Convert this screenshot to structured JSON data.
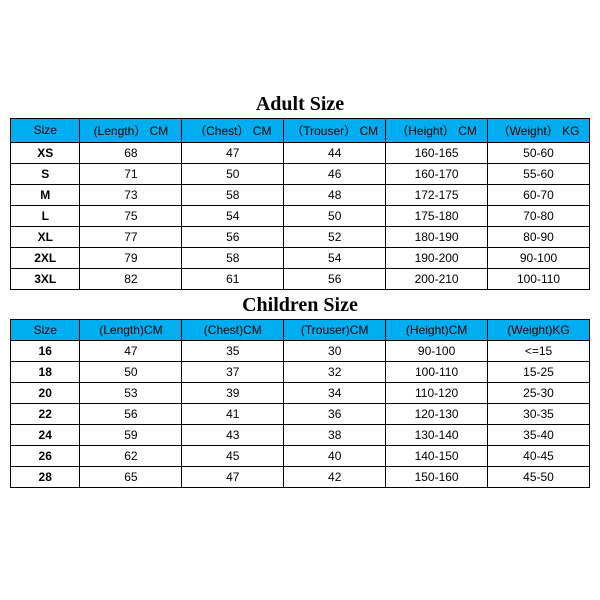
{
  "header_bg": "#00aeef",
  "adult": {
    "title": "Adult Size",
    "columns": [
      "Size",
      "(Length） CM",
      "（Chest） CM",
      "（Trouser） CM",
      "（Height） CM",
      "（Weight） KG"
    ],
    "rows": [
      [
        "XS",
        "68",
        "47",
        "44",
        "160-165",
        "50-60"
      ],
      [
        "S",
        "71",
        "50",
        "46",
        "160-170",
        "55-60"
      ],
      [
        "M",
        "73",
        "58",
        "48",
        "172-175",
        "60-70"
      ],
      [
        "L",
        "75",
        "54",
        "50",
        "175-180",
        "70-80"
      ],
      [
        "XL",
        "77",
        "56",
        "52",
        "180-190",
        "80-90"
      ],
      [
        "2XL",
        "79",
        "58",
        "54",
        "190-200",
        "90-100"
      ],
      [
        "3XL",
        "82",
        "61",
        "56",
        "200-210",
        "100-110"
      ]
    ]
  },
  "children": {
    "title": "Children Size",
    "columns": [
      "Size",
      "(Length)CM",
      "(Chest)CM",
      "(Trouser)CM",
      "(Height)CM",
      "(Weight)KG"
    ],
    "rows": [
      [
        "16",
        "47",
        "35",
        "30",
        "90-100",
        "<=15"
      ],
      [
        "18",
        "50",
        "37",
        "32",
        "100-110",
        "15-25"
      ],
      [
        "20",
        "53",
        "39",
        "34",
        "110-120",
        "25-30"
      ],
      [
        "22",
        "56",
        "41",
        "36",
        "120-130",
        "30-35"
      ],
      [
        "24",
        "59",
        "43",
        "38",
        "130-140",
        "35-40"
      ],
      [
        "26",
        "62",
        "45",
        "40",
        "140-150",
        "40-45"
      ],
      [
        "28",
        "65",
        "47",
        "42",
        "150-160",
        "45-50"
      ]
    ]
  }
}
